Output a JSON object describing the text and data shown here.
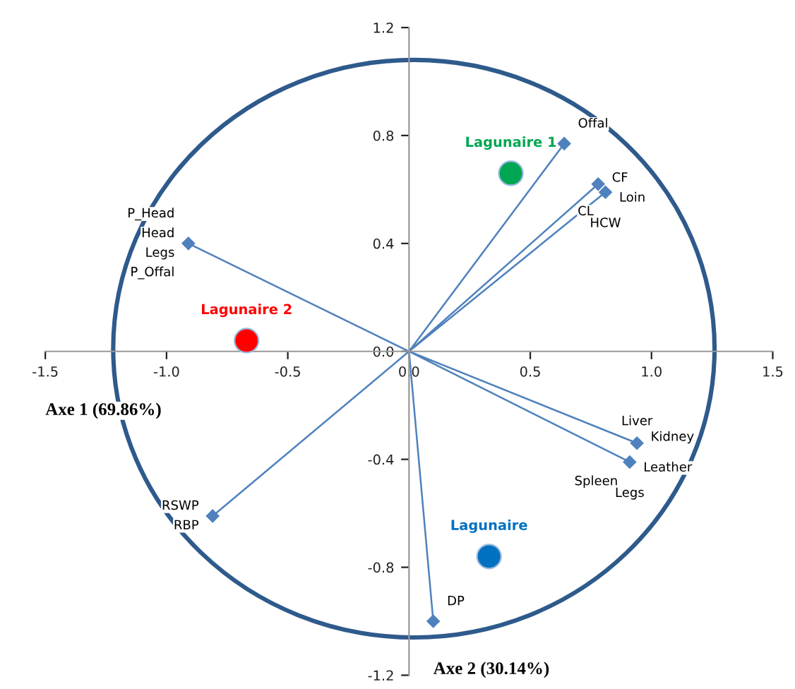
{
  "chart_data": {
    "type": "scatter",
    "xlabel": "Axe 1 (69.86%)",
    "ylabel": "Axe 2 (30.14%)",
    "xlim": [
      -1.5,
      1.5
    ],
    "ylim": [
      -1.2,
      1.2
    ],
    "xticks": [
      -1.5,
      {
        "value": -1.0,
        "label": "-1.0"
      },
      -0.5,
      {
        "value": 0.0,
        "label": "0.0"
      },
      0.5,
      {
        "value": 1.0,
        "label": "1.0"
      },
      1.5
    ],
    "yticks": [
      -1.2,
      -0.8,
      -0.4,
      {
        "value": 0.0,
        "label": "0.0"
      },
      0.4,
      0.8,
      1.2
    ],
    "grid": false,
    "legend": false,
    "series": [
      {
        "type": "line",
        "color": "#4f81bd",
        "marker": "diamond",
        "x": [
          0,
          -0.91,
          null,
          0,
          0.64,
          null,
          0,
          0.78,
          null,
          0,
          0.81,
          null,
          0,
          0.94,
          null,
          0,
          0.91,
          null,
          0,
          -0.81,
          null,
          0,
          0.1
        ],
        "values": [
          0,
          0.4,
          null,
          0,
          0.77,
          null,
          0,
          0.62,
          null,
          0,
          0.59,
          null,
          0,
          -0.34,
          null,
          0,
          -0.41,
          null,
          0,
          -0.61,
          null,
          0,
          -1.0
        ]
      },
      {
        "type": "scatter",
        "name": "Lagunaire 2",
        "color": "#ff0000",
        "marker": "circle",
        "x": [
          -0.67
        ],
        "values": [
          0.04
        ]
      },
      {
        "type": "scatter",
        "name": "Lagunaire 1",
        "color": "#00a651",
        "marker": "circle",
        "x": [
          0.42
        ],
        "values": [
          0.66
        ]
      },
      {
        "type": "scatter",
        "name": "Lagunaire",
        "color": "#0070c0",
        "marker": "circle",
        "x": [
          0.33
        ],
        "values": [
          -0.76
        ]
      }
    ],
    "annotations": [
      {
        "text": "P_Head",
        "x": -0.91,
        "y": 0.4
      },
      {
        "text": "Head",
        "x": -0.91,
        "y": 0.4
      },
      {
        "text": "Legs",
        "x": -0.91,
        "y": 0.4
      },
      {
        "text": "P_Offal",
        "x": -0.91,
        "y": 0.4
      },
      {
        "text": "Offal",
        "x": 0.64,
        "y": 0.77
      },
      {
        "text": "CF",
        "x": 0.78,
        "y": 0.62
      },
      {
        "text": "Loin",
        "x": 0.81,
        "y": 0.59
      },
      {
        "text": "CL",
        "x": 0.81,
        "y": 0.59
      },
      {
        "text": "HCW",
        "x": 0.81,
        "y": 0.59
      },
      {
        "text": "Liver",
        "x": 0.94,
        "y": -0.34
      },
      {
        "text": "Kidney",
        "x": 0.94,
        "y": -0.34
      },
      {
        "text": "Leather",
        "x": 0.91,
        "y": -0.41
      },
      {
        "text": "Spleen",
        "x": 0.91,
        "y": -0.41
      },
      {
        "text": "Legs",
        "x": 0.91,
        "y": -0.41
      },
      {
        "text": "RSWP",
        "x": -0.81,
        "y": -0.61
      },
      {
        "text": "RBP",
        "x": -0.81,
        "y": -0.61
      },
      {
        "text": "DP",
        "x": 0.1,
        "y": -1.0
      }
    ]
  }
}
